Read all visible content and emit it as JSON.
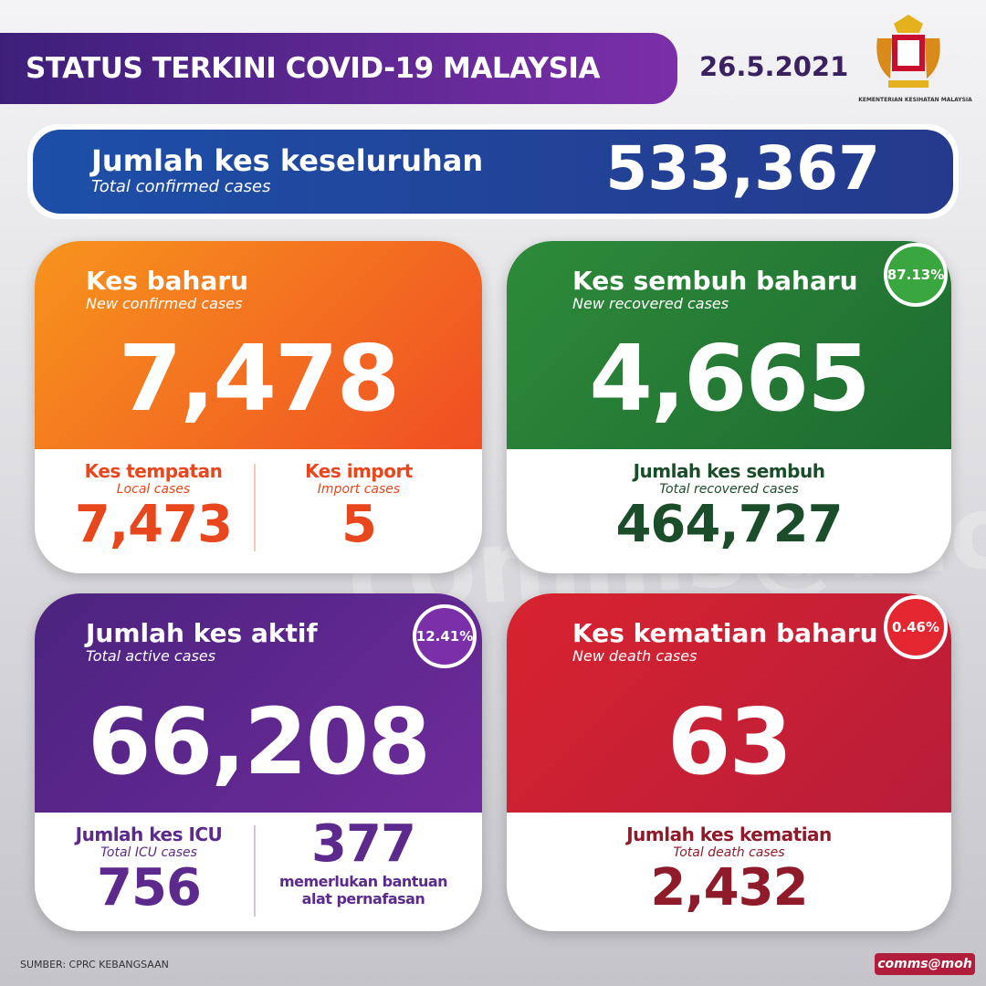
{
  "header": {
    "title": "STATUS TERKINI COVID-19 MALAYSIA",
    "date": "26.5.2021",
    "logo_caption": "KEMENTERIAN KESIHATAN MALAYSIA"
  },
  "total": {
    "label": "Jumlah kes keseluruhan",
    "sublabel": "Total confirmed cases",
    "value": "533,367"
  },
  "new_cases": {
    "label": "Kes baharu",
    "sublabel": "New confirmed cases",
    "value": "7,478",
    "local": {
      "label": "Kes tempatan",
      "sublabel": "Local cases",
      "value": "7,473"
    },
    "import": {
      "label": "Kes import",
      "sublabel": "Import cases",
      "value": "5"
    }
  },
  "recovered": {
    "label": "Kes sembuh baharu",
    "sublabel": "New recovered cases",
    "value": "4,665",
    "percent": "87.13%",
    "total": {
      "label": "Jumlah kes sembuh",
      "sublabel": "Total recovered cases",
      "value": "464,727"
    }
  },
  "active": {
    "label": "Jumlah kes aktif",
    "sublabel": "Total active cases",
    "value": "66,208",
    "percent": "12.41%",
    "icu": {
      "label": "Jumlah kes ICU",
      "sublabel": "Total ICU cases",
      "value": "756"
    },
    "ventilator": {
      "value": "377",
      "label": "memerlukan bantuan alat pernafasan"
    }
  },
  "deaths": {
    "label": "Kes kematian baharu",
    "sublabel": "New death cases",
    "value": "63",
    "percent": "0.46%",
    "total": {
      "label": "Jumlah kes kematian",
      "sublabel": "Total death cases",
      "value": "2,432"
    }
  },
  "footer": {
    "source": "SUMBER: CPRC KEBANGSAAN",
    "brand": "comms@moh"
  }
}
